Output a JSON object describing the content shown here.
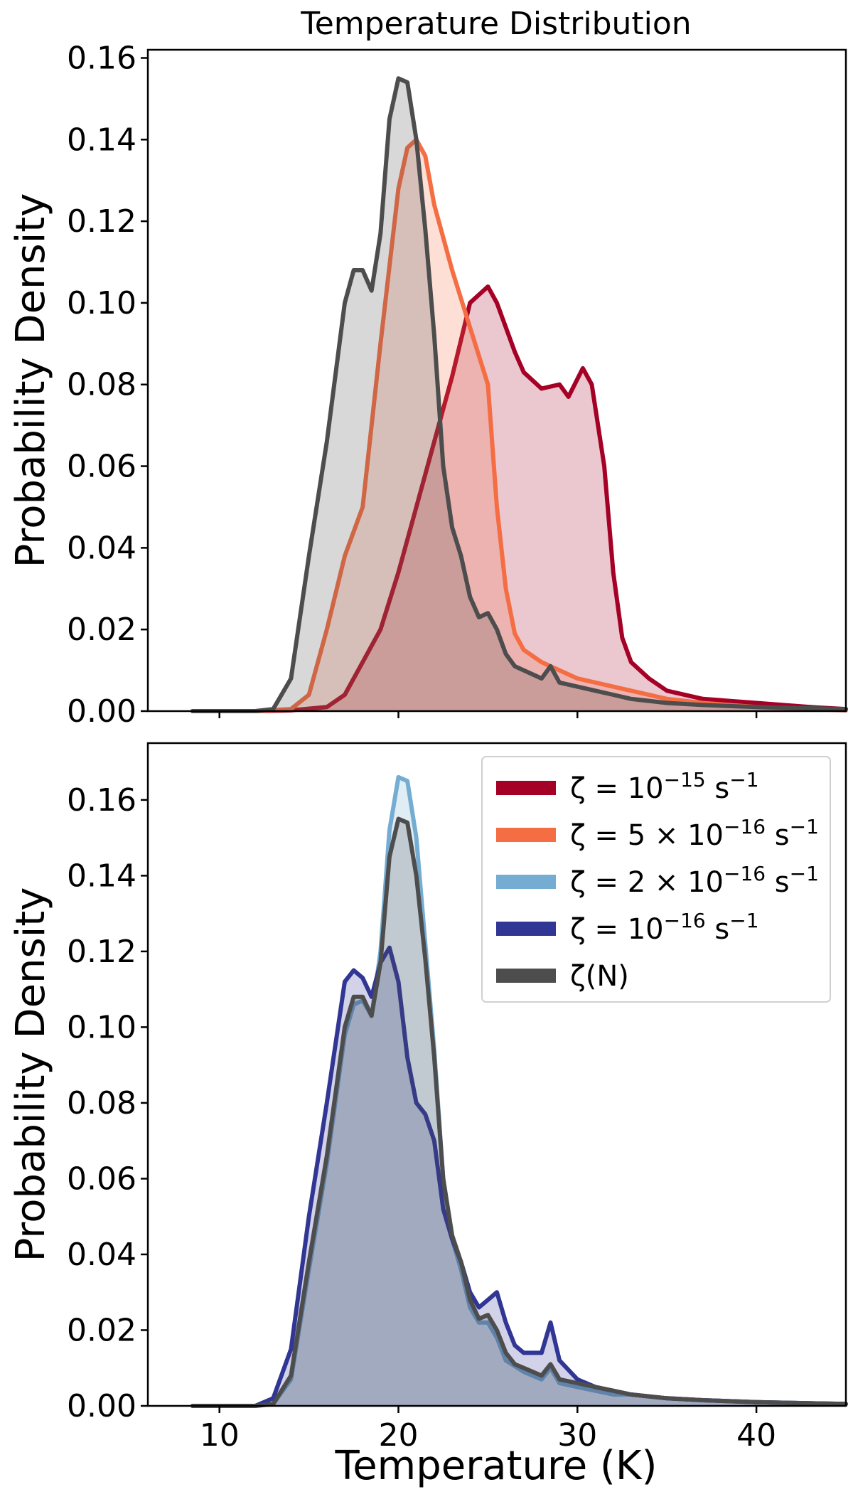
{
  "chart_data": [
    {
      "type": "area",
      "title": "Temperature Distribution",
      "xlabel": "",
      "ylabel": "Probability Density",
      "xlim": [
        6,
        45
      ],
      "ylim": [
        0,
        0.162
      ],
      "xticks": [
        10,
        20,
        30,
        40
      ],
      "yticks": [
        0.0,
        0.02,
        0.04,
        0.06,
        0.08,
        0.1,
        0.12,
        0.14,
        0.16
      ],
      "ytick_labels": [
        "0.00",
        "0.02",
        "0.04",
        "0.06",
        "0.08",
        "0.10",
        "0.12",
        "0.14",
        "0.16"
      ],
      "show_xtick_labels": false,
      "series": [
        {
          "name": "ζ = 10⁻¹⁵ s⁻¹",
          "color": "#a50026",
          "x": [
            8.5,
            12,
            14,
            16,
            17,
            18,
            19,
            20,
            21,
            22,
            23,
            24,
            25,
            25.5,
            26.5,
            27,
            28,
            29,
            29.5,
            30.3,
            30.8,
            31.5,
            32,
            32.5,
            33,
            34,
            35,
            37,
            40,
            43,
            45
          ],
          "y": [
            0,
            0,
            0.0002,
            0.001,
            0.004,
            0.012,
            0.02,
            0.034,
            0.05,
            0.066,
            0.082,
            0.1,
            0.104,
            0.1,
            0.088,
            0.083,
            0.079,
            0.08,
            0.077,
            0.084,
            0.08,
            0.06,
            0.034,
            0.018,
            0.012,
            0.008,
            0.005,
            0.003,
            0.002,
            0.001,
            0.0005
          ]
        },
        {
          "name": "ζ = 5 × 10⁻¹⁶ s⁻¹",
          "color": "#f46d43",
          "x": [
            8.5,
            12,
            14,
            15,
            16,
            17,
            18,
            19,
            20,
            20.5,
            21,
            21.5,
            22,
            23,
            24,
            25,
            25.5,
            26,
            26.5,
            27,
            28,
            29,
            30,
            31,
            33,
            35,
            37,
            40,
            43,
            45
          ],
          "y": [
            0,
            0,
            0.0005,
            0.004,
            0.02,
            0.038,
            0.05,
            0.09,
            0.128,
            0.138,
            0.14,
            0.136,
            0.124,
            0.108,
            0.094,
            0.08,
            0.05,
            0.03,
            0.019,
            0.015,
            0.012,
            0.01,
            0.008,
            0.007,
            0.005,
            0.003,
            0.002,
            0.001,
            0.0005,
            0.0002
          ]
        },
        {
          "name": "ζ(N)",
          "color": "#4d4d4d",
          "x": [
            8.5,
            12,
            13,
            14,
            15,
            16,
            17,
            17.5,
            18,
            18.5,
            19,
            19.5,
            20,
            20.5,
            21,
            21.5,
            22,
            22.5,
            23,
            23.5,
            24,
            24.5,
            25,
            25.5,
            26,
            26.5,
            27,
            28,
            28.5,
            29,
            30,
            31,
            32,
            33,
            35,
            37,
            40,
            45
          ],
          "y": [
            0,
            0,
            0.0005,
            0.008,
            0.038,
            0.066,
            0.1,
            0.108,
            0.108,
            0.103,
            0.117,
            0.145,
            0.155,
            0.154,
            0.14,
            0.118,
            0.092,
            0.06,
            0.045,
            0.038,
            0.028,
            0.023,
            0.024,
            0.02,
            0.014,
            0.011,
            0.01,
            0.008,
            0.011,
            0.007,
            0.006,
            0.005,
            0.004,
            0.003,
            0.002,
            0.0015,
            0.001,
            0.0005
          ]
        }
      ]
    },
    {
      "type": "area",
      "title": "",
      "xlabel": "Temperature (K)",
      "ylabel": "Probability Density",
      "xlim": [
        6,
        45
      ],
      "ylim": [
        0,
        0.175
      ],
      "xticks": [
        10,
        20,
        30,
        40
      ],
      "xtick_labels": [
        "10",
        "20",
        "30",
        "40"
      ],
      "yticks": [
        0.0,
        0.02,
        0.04,
        0.06,
        0.08,
        0.1,
        0.12,
        0.14,
        0.16
      ],
      "ytick_labels": [
        "0.00",
        "0.02",
        "0.04",
        "0.06",
        "0.08",
        "0.10",
        "0.12",
        "0.14",
        "0.16"
      ],
      "legend_position": "top-right",
      "legend": [
        {
          "base": "ζ = 10",
          "sup": "−15",
          "unit": " s",
          "unit_sup": "−1",
          "color": "#a50026"
        },
        {
          "base": "ζ = 5 × 10",
          "sup": "−16",
          "unit": " s",
          "unit_sup": "−1",
          "color": "#f46d43"
        },
        {
          "base": "ζ = 2 × 10",
          "sup": "−16",
          "unit": " s",
          "unit_sup": "−1",
          "color": "#74add1"
        },
        {
          "base": "ζ = 10",
          "sup": "−16",
          "unit": " s",
          "unit_sup": "−1",
          "color": "#313695"
        },
        {
          "base": "ζ(N)",
          "sup": "",
          "unit": "",
          "unit_sup": "",
          "color": "#4d4d4d"
        }
      ],
      "series": [
        {
          "name": "ζ = 2 × 10⁻¹⁶ s⁻¹",
          "color": "#74add1",
          "x": [
            8.5,
            12,
            13,
            14,
            15,
            16,
            17,
            17.5,
            18,
            18.5,
            19,
            19.5,
            20,
            20.5,
            21,
            21.5,
            22,
            22.5,
            23,
            23.5,
            24,
            24.5,
            25,
            25.5,
            26,
            27,
            28,
            28.5,
            29,
            30,
            31,
            32,
            33,
            35,
            37,
            40,
            45
          ],
          "y": [
            0,
            0,
            0.0005,
            0.007,
            0.036,
            0.064,
            0.098,
            0.106,
            0.107,
            0.103,
            0.12,
            0.152,
            0.166,
            0.165,
            0.15,
            0.122,
            0.094,
            0.06,
            0.044,
            0.036,
            0.026,
            0.022,
            0.022,
            0.018,
            0.012,
            0.009,
            0.007,
            0.01,
            0.006,
            0.005,
            0.004,
            0.003,
            0.003,
            0.002,
            0.0015,
            0.001,
            0.0005
          ]
        },
        {
          "name": "ζ = 10⁻¹⁶ s⁻¹",
          "color": "#313695",
          "x": [
            8.5,
            12,
            13,
            14,
            15,
            16,
            17,
            17.5,
            18,
            18.5,
            19,
            19.5,
            20,
            20.5,
            21,
            21.5,
            22,
            22.5,
            23,
            23.5,
            24,
            24.5,
            25,
            25.5,
            26,
            26.5,
            27,
            28,
            28.5,
            29,
            30,
            31,
            32,
            33,
            35,
            37,
            40,
            45
          ],
          "y": [
            0,
            0,
            0.002,
            0.015,
            0.05,
            0.08,
            0.112,
            0.115,
            0.113,
            0.108,
            0.117,
            0.121,
            0.112,
            0.092,
            0.08,
            0.077,
            0.07,
            0.052,
            0.044,
            0.038,
            0.03,
            0.026,
            0.028,
            0.03,
            0.022,
            0.016,
            0.014,
            0.014,
            0.022,
            0.012,
            0.007,
            0.005,
            0.004,
            0.003,
            0.002,
            0.0015,
            0.001,
            0.0005
          ]
        },
        {
          "name": "ζ(N)",
          "color": "#4d4d4d",
          "x": [
            8.5,
            12,
            13,
            14,
            15,
            16,
            17,
            17.5,
            18,
            18.5,
            19,
            19.5,
            20,
            20.5,
            21,
            21.5,
            22,
            22.5,
            23,
            23.5,
            24,
            24.5,
            25,
            25.5,
            26,
            26.5,
            27,
            28,
            28.5,
            29,
            30,
            31,
            32,
            33,
            35,
            37,
            40,
            45
          ],
          "y": [
            0,
            0,
            0.0005,
            0.008,
            0.038,
            0.066,
            0.1,
            0.108,
            0.108,
            0.103,
            0.117,
            0.145,
            0.155,
            0.154,
            0.14,
            0.118,
            0.092,
            0.06,
            0.045,
            0.038,
            0.028,
            0.023,
            0.024,
            0.02,
            0.014,
            0.011,
            0.01,
            0.008,
            0.011,
            0.007,
            0.006,
            0.005,
            0.004,
            0.003,
            0.002,
            0.0015,
            0.001,
            0.0005
          ]
        }
      ]
    }
  ]
}
